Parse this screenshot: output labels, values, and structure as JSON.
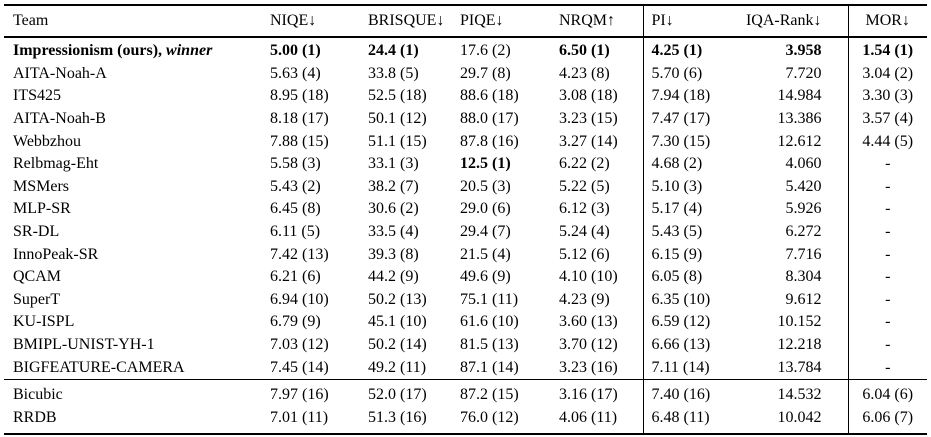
{
  "colors": {
    "background": "#ffffff",
    "text": "#000000",
    "rule": "#000000"
  },
  "table": {
    "columns": [
      {
        "id": "team",
        "label": "Team",
        "align": "team",
        "separator_before": false
      },
      {
        "id": "niqe",
        "label": "NIQE↓",
        "align": "val",
        "separator_before": false
      },
      {
        "id": "brisque",
        "label": "BRISQUE↓",
        "align": "val",
        "separator_before": false
      },
      {
        "id": "piqe",
        "label": "PIQE↓",
        "align": "val",
        "separator_before": false
      },
      {
        "id": "nrqm",
        "label": "NRQM↑",
        "align": "val",
        "separator_before": false
      },
      {
        "id": "pi",
        "label": "PI↓",
        "align": "pi",
        "separator_before": true
      },
      {
        "id": "iqa_rank",
        "label": "IQA-Rank↓",
        "align": "iqa_rank",
        "separator_before": false
      },
      {
        "id": "mor",
        "label": "MOR↓",
        "align": "mor",
        "separator_before": true
      }
    ],
    "sections": [
      {
        "name": "challenge-entries",
        "rows": [
          {
            "team": "Impressionism (ours),",
            "team_italic": "winner",
            "team_bold": true,
            "values": [
              "5.00 (1)",
              "24.4 (1)",
              "17.6 (2)",
              "6.50 (1)",
              "4.25 (1)",
              "3.958",
              "1.54 (1)"
            ],
            "bold": [
              true,
              true,
              false,
              true,
              true,
              true,
              true
            ]
          },
          {
            "team": "AITA-Noah-A",
            "values": [
              "5.63 (4)",
              "33.8 (5)",
              "29.7 (8)",
              "4.23 (8)",
              "5.70 (6)",
              "7.720",
              "3.04 (2)"
            ]
          },
          {
            "team": "ITS425",
            "values": [
              "8.95 (18)",
              "52.5 (18)",
              "88.6 (18)",
              "3.08 (18)",
              "7.94 (18)",
              "14.984",
              "3.30 (3)"
            ]
          },
          {
            "team": "AITA-Noah-B",
            "values": [
              "8.18 (17)",
              "50.1 (12)",
              "88.0 (17)",
              "3.23 (15)",
              "7.47 (17)",
              "13.386",
              "3.57 (4)"
            ]
          },
          {
            "team": "Webbzhou",
            "values": [
              "7.88 (15)",
              "51.1 (15)",
              "87.8 (16)",
              "3.27 (14)",
              "7.30 (15)",
              "12.612",
              "4.44 (5)"
            ]
          },
          {
            "team": "Relbmag-Eht",
            "values": [
              "5.58 (3)",
              "33.1 (3)",
              "12.5 (1)",
              "6.22 (2)",
              "4.68 (2)",
              "4.060",
              "-"
            ],
            "bold": [
              false,
              false,
              true,
              false,
              false,
              false,
              false
            ]
          },
          {
            "team": "MSMers",
            "values": [
              "5.43 (2)",
              "38.2 (7)",
              "20.5 (3)",
              "5.22 (5)",
              "5.10 (3)",
              "5.420",
              "-"
            ]
          },
          {
            "team": "MLP-SR",
            "values": [
              "6.45 (8)",
              "30.6 (2)",
              "29.0 (6)",
              "6.12 (3)",
              "5.17 (4)",
              "5.926",
              "-"
            ]
          },
          {
            "team": "SR-DL",
            "values": [
              "6.11 (5)",
              "33.5 (4)",
              "29.4 (7)",
              "5.24 (4)",
              "5.43 (5)",
              "6.272",
              "-"
            ]
          },
          {
            "team": "InnoPeak-SR",
            "values": [
              "7.42 (13)",
              "39.3 (8)",
              "21.5 (4)",
              "5.12 (6)",
              "6.15 (9)",
              "7.716",
              "-"
            ]
          },
          {
            "team": "QCAM",
            "values": [
              "6.21 (6)",
              "44.2 (9)",
              "49.6 (9)",
              "4.10 (10)",
              "6.05 (8)",
              "8.304",
              "-"
            ]
          },
          {
            "team": "SuperT",
            "values": [
              "6.94 (10)",
              "50.2 (13)",
              "75.1 (11)",
              "4.23 (9)",
              "6.35 (10)",
              "9.612",
              "-"
            ]
          },
          {
            "team": "KU-ISPL",
            "values": [
              "6.79 (9)",
              "45.1 (10)",
              "61.6 (10)",
              "3.60 (13)",
              "6.59 (12)",
              "10.152",
              "-"
            ]
          },
          {
            "team": "BMIPL-UNIST-YH-1",
            "values": [
              "7.03 (12)",
              "50.2 (14)",
              "81.5 (13)",
              "3.70 (12)",
              "6.66 (13)",
              "12.218",
              "-"
            ]
          },
          {
            "team": "BIGFEATURE-CAMERA",
            "values": [
              "7.45 (14)",
              "49.2 (11)",
              "87.1 (14)",
              "3.23 (16)",
              "7.11 (14)",
              "13.784",
              "-"
            ]
          }
        ]
      },
      {
        "name": "baselines",
        "rows": [
          {
            "team": "Bicubic",
            "values": [
              "7.97 (16)",
              "52.0 (17)",
              "87.2 (15)",
              "3.16 (17)",
              "7.40 (16)",
              "14.532",
              "6.04 (6)"
            ]
          },
          {
            "team": "RRDB",
            "values": [
              "7.01 (11)",
              "51.3 (16)",
              "76.0 (12)",
              "4.06 (11)",
              "6.48 (11)",
              "10.042",
              "6.06 (7)"
            ]
          }
        ]
      }
    ]
  }
}
